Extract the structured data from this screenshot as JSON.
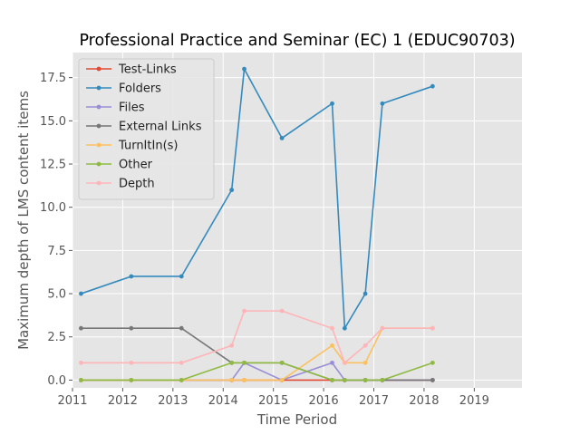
{
  "chart_data": {
    "type": "line",
    "title": "Professional Practice and Seminar (EC) 1 (EDUC90703)",
    "xlabel": "Time Period",
    "ylabel": "Maximum depth of LMS content items",
    "xlim": [
      2011.0,
      2019.95
    ],
    "ylim": [
      -0.45,
      18.95
    ],
    "xticks": [
      2011,
      2012,
      2013,
      2014,
      2015,
      2016,
      2017,
      2018,
      2019
    ],
    "xtick_labels": [
      "2011",
      "2012",
      "2013",
      "2014",
      "2015",
      "2016",
      "2017",
      "2018",
      "2019"
    ],
    "yticks": [
      0,
      2.5,
      5,
      7.5,
      10,
      12.5,
      15,
      17.5
    ],
    "ytick_labels": [
      "0.0",
      "2.5",
      "5.0",
      "7.5",
      "10.0",
      "12.5",
      "15.0",
      "17.5"
    ],
    "grid": true,
    "legend_position": "top-left",
    "x": [
      2011.17,
      2012.17,
      2013.17,
      2014.17,
      2014.42,
      2015.17,
      2016.17,
      2016.42,
      2016.83,
      2017.17,
      2018.17
    ],
    "series": [
      {
        "name": "Test-Links",
        "color": "#e24a33",
        "values": [
          0,
          0,
          0,
          0,
          0,
          0,
          0,
          0,
          0,
          0,
          0
        ]
      },
      {
        "name": "Folders",
        "color": "#348abd",
        "values": [
          5,
          6,
          6,
          11,
          18,
          14,
          16,
          3,
          5,
          16,
          17
        ]
      },
      {
        "name": "Files",
        "color": "#988ed5",
        "values": [
          0,
          0,
          0,
          0,
          1,
          0,
          1,
          0,
          0,
          0,
          0
        ]
      },
      {
        "name": "External Links",
        "color": "#777777",
        "values": [
          3,
          3,
          3,
          1,
          1,
          1,
          0,
          0,
          0,
          0,
          0
        ]
      },
      {
        "name": "TurnItIn(s)",
        "color": "#fbc15e",
        "values": [
          0,
          0,
          0,
          0,
          0,
          0,
          2,
          1,
          1,
          3,
          3
        ]
      },
      {
        "name": "Other",
        "color": "#8eba42",
        "values": [
          0,
          0,
          0,
          1,
          1,
          1,
          0,
          0,
          0,
          0,
          1
        ]
      },
      {
        "name": "Depth",
        "color": "#ffb5b8",
        "values": [
          1,
          1,
          1,
          2,
          4,
          4,
          3,
          1,
          2,
          3,
          3
        ]
      }
    ]
  }
}
